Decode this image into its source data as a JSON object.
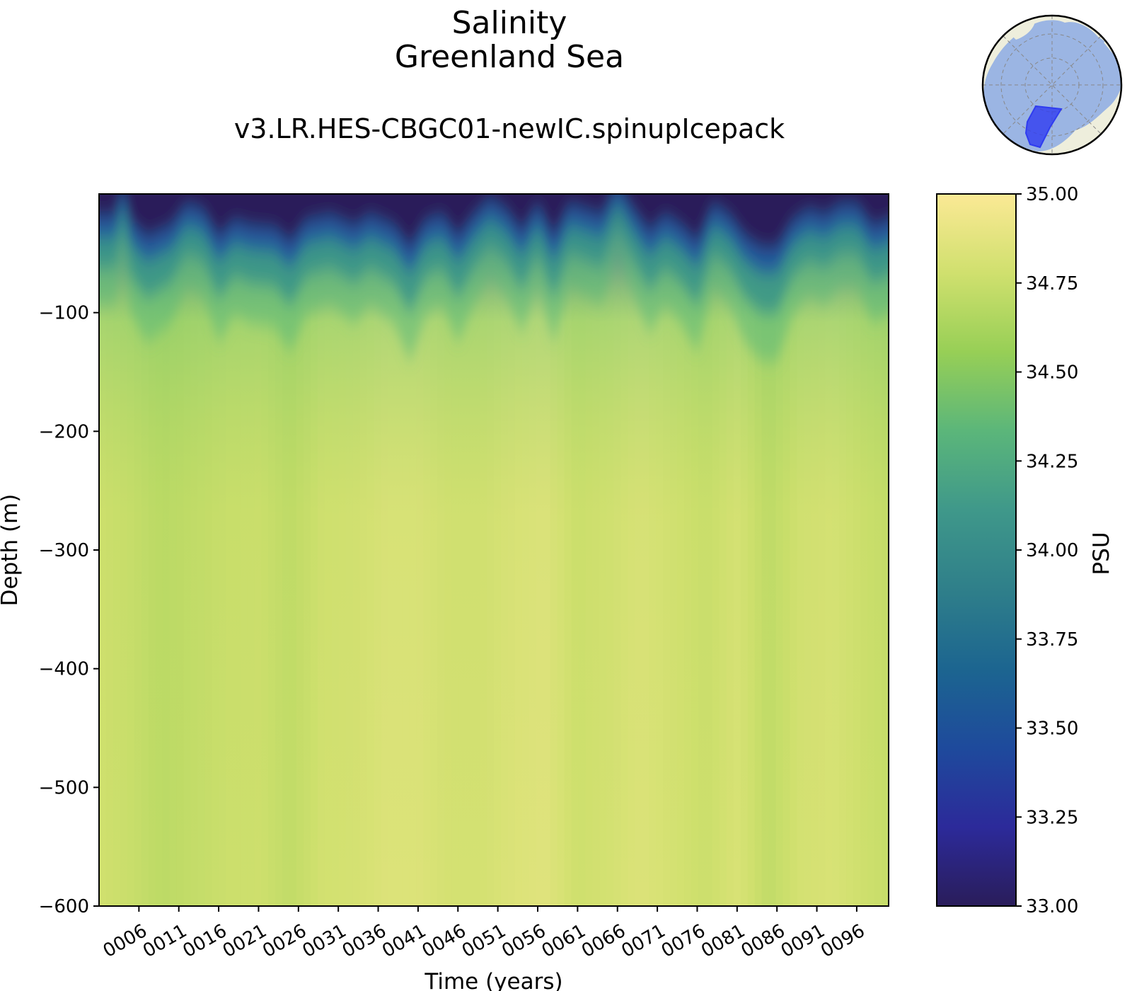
{
  "chart_data": {
    "type": "heatmap",
    "title": "Salinity",
    "subtitle": "Greenland Sea",
    "run_name": "v3.LR.HES-CBGC01-newIC.spinupIcepack",
    "xlabel": "Time (years)",
    "ylabel": "Depth (m)",
    "x_range": [
      1,
      100
    ],
    "ylim": [
      -600,
      0
    ],
    "x_ticks": [
      6,
      11,
      16,
      21,
      26,
      31,
      36,
      41,
      46,
      51,
      56,
      61,
      66,
      71,
      76,
      81,
      86,
      91,
      96
    ],
    "x_tick_labels": [
      "0006",
      "0011",
      "0016",
      "0021",
      "0026",
      "0031",
      "0036",
      "0041",
      "0046",
      "0051",
      "0056",
      "0061",
      "0066",
      "0071",
      "0076",
      "0081",
      "0086",
      "0091",
      "0096"
    ],
    "y_ticks": [
      -100,
      -200,
      -300,
      -400,
      -500,
      -600
    ],
    "y_tick_labels": [
      "−100",
      "−200",
      "−300",
      "−400",
      "−500",
      "−600"
    ],
    "colorbar": {
      "label": "PSU",
      "colormap": "haline",
      "vmin": 33.0,
      "vmax": 35.0,
      "ticks": [
        33.0,
        33.25,
        33.5,
        33.75,
        34.0,
        34.25,
        34.5,
        34.75,
        35.0
      ],
      "tick_labels": [
        "33.00",
        "33.25",
        "33.50",
        "33.75",
        "34.00",
        "34.25",
        "34.50",
        "34.75",
        "35.00"
      ],
      "colors": [
        "#2a1d5a",
        "#2c2a9a",
        "#1e4a9c",
        "#1c6590",
        "#2f7f8a",
        "#3f988a",
        "#5bb67a",
        "#97cf56",
        "#d0e06e",
        "#fbe995"
      ]
    },
    "surface_fresh_layer_bottom_m": [
      [
        1,
        -30
      ],
      [
        3,
        -30
      ],
      [
        4,
        -3
      ],
      [
        5,
        -35
      ],
      [
        7,
        -50
      ],
      [
        10,
        -40
      ],
      [
        12,
        -20
      ],
      [
        14,
        -25
      ],
      [
        16,
        -50
      ],
      [
        18,
        -35
      ],
      [
        20,
        -40
      ],
      [
        23,
        -42
      ],
      [
        25,
        -55
      ],
      [
        27,
        -35
      ],
      [
        30,
        -30
      ],
      [
        33,
        -40
      ],
      [
        35,
        -30
      ],
      [
        38,
        -40
      ],
      [
        40,
        -60
      ],
      [
        42,
        -35
      ],
      [
        44,
        -30
      ],
      [
        46,
        -50
      ],
      [
        48,
        -30
      ],
      [
        50,
        -15
      ],
      [
        52,
        -25
      ],
      [
        54,
        -45
      ],
      [
        56,
        -20
      ],
      [
        58,
        -50
      ],
      [
        60,
        -20
      ],
      [
        62,
        -25
      ],
      [
        64,
        -30
      ],
      [
        66,
        -2
      ],
      [
        68,
        -25
      ],
      [
        70,
        -45
      ],
      [
        72,
        -30
      ],
      [
        74,
        -40
      ],
      [
        76,
        -55
      ],
      [
        78,
        -20
      ],
      [
        80,
        -30
      ],
      [
        82,
        -50
      ],
      [
        84,
        -60
      ],
      [
        86,
        -60
      ],
      [
        88,
        -35
      ],
      [
        90,
        -25
      ],
      [
        92,
        -30
      ],
      [
        94,
        -20
      ],
      [
        96,
        -20
      ],
      [
        98,
        -40
      ],
      [
        100,
        -30
      ]
    ],
    "deep_salinity_profile_psu": [
      [
        1,
        34.78
      ],
      [
        5,
        34.75
      ],
      [
        9,
        34.7
      ],
      [
        13,
        34.73
      ],
      [
        17,
        34.76
      ],
      [
        21,
        34.77
      ],
      [
        25,
        34.72
      ],
      [
        29,
        34.79
      ],
      [
        33,
        34.8
      ],
      [
        37,
        34.84
      ],
      [
        41,
        34.84
      ],
      [
        45,
        34.8
      ],
      [
        49,
        34.8
      ],
      [
        53,
        34.84
      ],
      [
        57,
        34.86
      ],
      [
        61,
        34.77
      ],
      [
        65,
        34.8
      ],
      [
        69,
        34.84
      ],
      [
        73,
        34.8
      ],
      [
        77,
        34.76
      ],
      [
        81,
        34.82
      ],
      [
        85,
        34.72
      ],
      [
        89,
        34.8
      ],
      [
        93,
        34.82
      ],
      [
        97,
        34.77
      ],
      [
        100,
        34.74
      ]
    ]
  },
  "inset_map": {
    "name": "Greenland Sea region inset",
    "projection": "north-polar",
    "region_color": "#2f3cf0"
  }
}
